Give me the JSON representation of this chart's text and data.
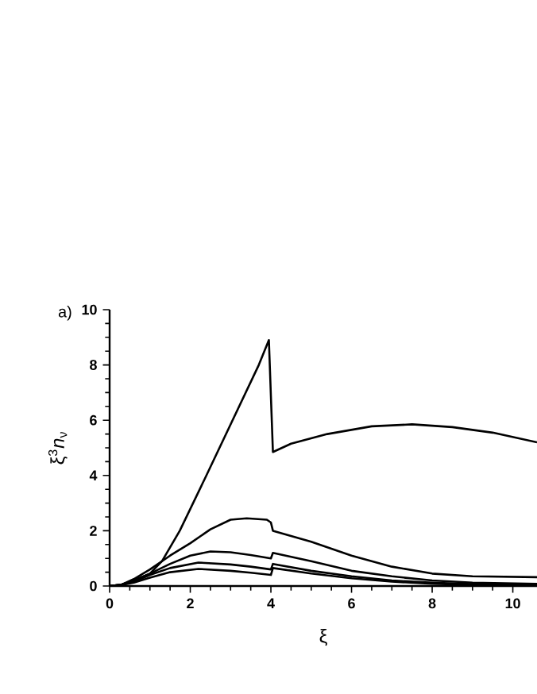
{
  "chart_data": {
    "type": "line",
    "xlabel": "ξ",
    "ylabel": "ξ$^{3}$*n*$_{ν}$",
    "annotations": [
      "a)"
    ],
    "xlim": [
      0,
      10.6
    ],
    "ylim": [
      0,
      10
    ],
    "xticks": [
      0,
      2,
      4,
      6,
      8,
      10
    ],
    "yticks": [
      0,
      2,
      4,
      6,
      8,
      10
    ],
    "marker": "none",
    "line_style": "solid",
    "series": [
      {
        "color": "#000000",
        "x": [
          0,
          0.3,
          0.6,
          1,
          1.3,
          1.74,
          2.4,
          3.05,
          3.7,
          3.95,
          4.05,
          4.5,
          5.4,
          6.5,
          7.5,
          8.5,
          9.5,
          10.6
        ],
        "values": [
          0,
          0.05,
          0.2,
          0.45,
          0.9,
          2,
          4,
          6,
          8,
          8.9,
          4.85,
          5.15,
          5.5,
          5.78,
          5.85,
          5.75,
          5.55,
          5.2
        ]
      },
      {
        "color": "#000000",
        "x": [
          0,
          0.3,
          0.6,
          1,
          1.5,
          2,
          2.5,
          3,
          3.4,
          3.9,
          4.0,
          4.05,
          5,
          6,
          7,
          8,
          9,
          10.6
        ],
        "values": [
          0,
          0.05,
          0.25,
          0.6,
          1.1,
          1.55,
          2.05,
          2.4,
          2.45,
          2.4,
          2.3,
          2.0,
          1.6,
          1.1,
          0.7,
          0.45,
          0.35,
          0.32
        ]
      },
      {
        "color": "#000000",
        "x": [
          0,
          0.3,
          0.6,
          1,
          1.5,
          2,
          2.5,
          3,
          3.5,
          4.0,
          4.05,
          5,
          6,
          7,
          8,
          9,
          10.6
        ],
        "values": [
          0,
          0.05,
          0.2,
          0.45,
          0.8,
          1.1,
          1.25,
          1.22,
          1.12,
          1.0,
          1.2,
          0.9,
          0.55,
          0.35,
          0.2,
          0.12,
          0.08
        ]
      },
      {
        "color": "#000000",
        "x": [
          0,
          0.3,
          0.6,
          1,
          1.5,
          2.2,
          3,
          3.5,
          4.0,
          4.05,
          5,
          6,
          7,
          8,
          9,
          10.6
        ],
        "values": [
          0,
          0.05,
          0.15,
          0.4,
          0.65,
          0.85,
          0.78,
          0.7,
          0.6,
          0.8,
          0.55,
          0.35,
          0.2,
          0.12,
          0.07,
          0.04
        ]
      },
      {
        "color": "#000000",
        "x": [
          0,
          0.3,
          0.6,
          1,
          1.5,
          2.2,
          3,
          3.5,
          4.0,
          4.05,
          5,
          6,
          7,
          8,
          9,
          10.6
        ],
        "values": [
          0,
          0.04,
          0.12,
          0.3,
          0.5,
          0.62,
          0.55,
          0.48,
          0.4,
          0.65,
          0.45,
          0.28,
          0.16,
          0.08,
          0.04,
          0.02
        ]
      }
    ]
  }
}
